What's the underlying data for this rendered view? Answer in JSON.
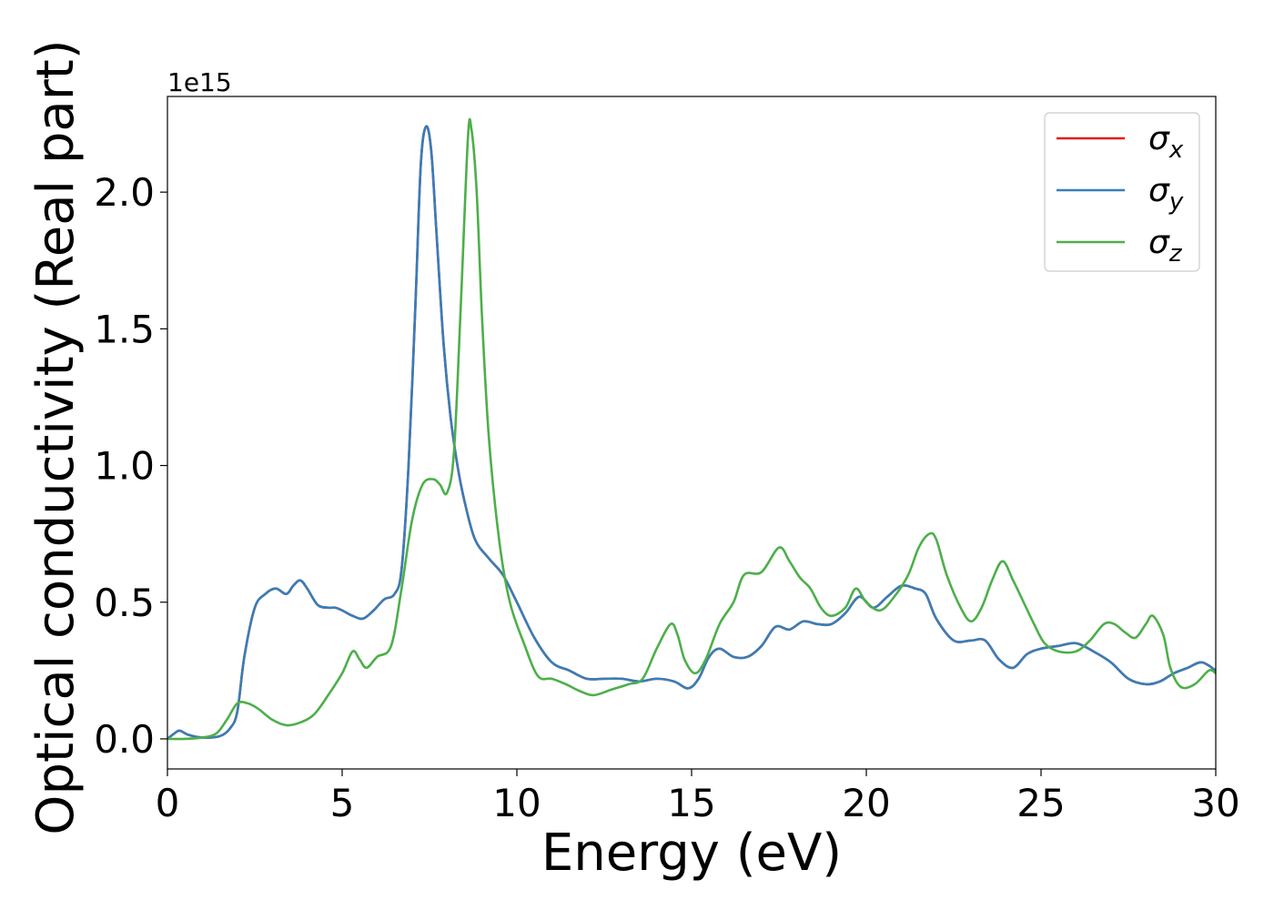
{
  "chart_data": {
    "type": "line",
    "xlabel": "Energy (eV)",
    "ylabel": "Optical conductivity (Real part)",
    "y_offset_label": "1e15",
    "xlim": [
      0,
      30
    ],
    "ylim": [
      -0.11,
      2.35
    ],
    "x_ticks": [
      0,
      5,
      10,
      15,
      20,
      25,
      30
    ],
    "y_ticks": [
      0.0,
      0.5,
      1.0,
      1.5,
      2.0
    ],
    "x_tick_labels": [
      "0",
      "5",
      "10",
      "15",
      "20",
      "25",
      "30"
    ],
    "y_tick_labels": [
      "0.0",
      "0.5",
      "1.0",
      "1.5",
      "2.0"
    ],
    "grid": false,
    "legend_position": "top-right",
    "legend": [
      {
        "symbol": "σ",
        "subscript": "x",
        "color": "#e41a1c"
      },
      {
        "symbol": "σ",
        "subscript": "y",
        "color": "#377eb8"
      },
      {
        "symbol": "σ",
        "subscript": "z",
        "color": "#4daf4a"
      }
    ],
    "series": [
      {
        "name": "σx",
        "color": "#e41a1c",
        "points": [
          [
            0,
            0.0
          ],
          [
            0.2,
            0.02
          ],
          [
            0.35,
            0.03
          ],
          [
            0.6,
            0.015
          ],
          [
            1.0,
            0.005
          ],
          [
            1.5,
            0.01
          ],
          [
            1.8,
            0.04
          ],
          [
            2.0,
            0.1
          ],
          [
            2.2,
            0.3
          ],
          [
            2.5,
            0.48
          ],
          [
            2.8,
            0.53
          ],
          [
            3.1,
            0.55
          ],
          [
            3.4,
            0.53
          ],
          [
            3.6,
            0.56
          ],
          [
            3.8,
            0.58
          ],
          [
            4.0,
            0.55
          ],
          [
            4.3,
            0.49
          ],
          [
            4.6,
            0.48
          ],
          [
            4.8,
            0.48
          ],
          [
            5.0,
            0.47
          ],
          [
            5.3,
            0.45
          ],
          [
            5.6,
            0.44
          ],
          [
            5.9,
            0.47
          ],
          [
            6.2,
            0.51
          ],
          [
            6.5,
            0.53
          ],
          [
            6.7,
            0.62
          ],
          [
            6.9,
            1.0
          ],
          [
            7.1,
            1.6
          ],
          [
            7.25,
            2.1
          ],
          [
            7.4,
            2.24
          ],
          [
            7.55,
            2.15
          ],
          [
            7.7,
            1.85
          ],
          [
            7.9,
            1.45
          ],
          [
            8.1,
            1.18
          ],
          [
            8.3,
            1.0
          ],
          [
            8.5,
            0.87
          ],
          [
            8.8,
            0.73
          ],
          [
            9.2,
            0.66
          ],
          [
            9.6,
            0.6
          ],
          [
            10.0,
            0.5
          ],
          [
            10.5,
            0.37
          ],
          [
            11.0,
            0.28
          ],
          [
            11.5,
            0.25
          ],
          [
            12.0,
            0.22
          ],
          [
            12.5,
            0.22
          ],
          [
            13.0,
            0.22
          ],
          [
            13.5,
            0.21
          ],
          [
            14.0,
            0.22
          ],
          [
            14.5,
            0.21
          ],
          [
            14.9,
            0.185
          ],
          [
            15.2,
            0.22
          ],
          [
            15.5,
            0.3
          ],
          [
            15.8,
            0.33
          ],
          [
            16.2,
            0.3
          ],
          [
            16.6,
            0.3
          ],
          [
            17.0,
            0.34
          ],
          [
            17.4,
            0.41
          ],
          [
            17.8,
            0.4
          ],
          [
            18.2,
            0.43
          ],
          [
            18.6,
            0.42
          ],
          [
            19.0,
            0.42
          ],
          [
            19.4,
            0.46
          ],
          [
            19.8,
            0.52
          ],
          [
            20.2,
            0.48
          ],
          [
            20.6,
            0.52
          ],
          [
            21.0,
            0.56
          ],
          [
            21.4,
            0.55
          ],
          [
            21.7,
            0.53
          ],
          [
            22.0,
            0.44
          ],
          [
            22.5,
            0.36
          ],
          [
            23.0,
            0.36
          ],
          [
            23.4,
            0.36
          ],
          [
            23.8,
            0.29
          ],
          [
            24.2,
            0.26
          ],
          [
            24.6,
            0.31
          ],
          [
            25.0,
            0.33
          ],
          [
            25.5,
            0.34
          ],
          [
            26.0,
            0.35
          ],
          [
            26.5,
            0.32
          ],
          [
            27.0,
            0.28
          ],
          [
            27.5,
            0.22
          ],
          [
            28.0,
            0.2
          ],
          [
            28.4,
            0.21
          ],
          [
            28.8,
            0.24
          ],
          [
            29.2,
            0.26
          ],
          [
            29.6,
            0.28
          ],
          [
            30.0,
            0.25
          ]
        ]
      },
      {
        "name": "σy",
        "color": "#377eb8",
        "points": [
          [
            0,
            0.0
          ],
          [
            0.2,
            0.02
          ],
          [
            0.35,
            0.03
          ],
          [
            0.6,
            0.015
          ],
          [
            1.0,
            0.005
          ],
          [
            1.5,
            0.01
          ],
          [
            1.8,
            0.04
          ],
          [
            2.0,
            0.1
          ],
          [
            2.2,
            0.3
          ],
          [
            2.5,
            0.48
          ],
          [
            2.8,
            0.53
          ],
          [
            3.1,
            0.55
          ],
          [
            3.4,
            0.53
          ],
          [
            3.6,
            0.56
          ],
          [
            3.8,
            0.58
          ],
          [
            4.0,
            0.55
          ],
          [
            4.3,
            0.49
          ],
          [
            4.6,
            0.48
          ],
          [
            4.8,
            0.48
          ],
          [
            5.0,
            0.47
          ],
          [
            5.3,
            0.45
          ],
          [
            5.6,
            0.44
          ],
          [
            5.9,
            0.47
          ],
          [
            6.2,
            0.51
          ],
          [
            6.5,
            0.53
          ],
          [
            6.7,
            0.62
          ],
          [
            6.9,
            1.0
          ],
          [
            7.1,
            1.6
          ],
          [
            7.25,
            2.1
          ],
          [
            7.4,
            2.24
          ],
          [
            7.55,
            2.15
          ],
          [
            7.7,
            1.85
          ],
          [
            7.9,
            1.45
          ],
          [
            8.1,
            1.18
          ],
          [
            8.3,
            1.0
          ],
          [
            8.5,
            0.87
          ],
          [
            8.8,
            0.73
          ],
          [
            9.2,
            0.66
          ],
          [
            9.6,
            0.6
          ],
          [
            10.0,
            0.5
          ],
          [
            10.5,
            0.37
          ],
          [
            11.0,
            0.28
          ],
          [
            11.5,
            0.25
          ],
          [
            12.0,
            0.22
          ],
          [
            12.5,
            0.22
          ],
          [
            13.0,
            0.22
          ],
          [
            13.5,
            0.21
          ],
          [
            14.0,
            0.22
          ],
          [
            14.5,
            0.21
          ],
          [
            14.9,
            0.185
          ],
          [
            15.2,
            0.22
          ],
          [
            15.5,
            0.3
          ],
          [
            15.8,
            0.33
          ],
          [
            16.2,
            0.3
          ],
          [
            16.6,
            0.3
          ],
          [
            17.0,
            0.34
          ],
          [
            17.4,
            0.41
          ],
          [
            17.8,
            0.4
          ],
          [
            18.2,
            0.43
          ],
          [
            18.6,
            0.42
          ],
          [
            19.0,
            0.42
          ],
          [
            19.4,
            0.46
          ],
          [
            19.8,
            0.52
          ],
          [
            20.2,
            0.48
          ],
          [
            20.6,
            0.52
          ],
          [
            21.0,
            0.56
          ],
          [
            21.4,
            0.55
          ],
          [
            21.7,
            0.53
          ],
          [
            22.0,
            0.44
          ],
          [
            22.5,
            0.36
          ],
          [
            23.0,
            0.36
          ],
          [
            23.4,
            0.36
          ],
          [
            23.8,
            0.29
          ],
          [
            24.2,
            0.26
          ],
          [
            24.6,
            0.31
          ],
          [
            25.0,
            0.33
          ],
          [
            25.5,
            0.34
          ],
          [
            26.0,
            0.35
          ],
          [
            26.5,
            0.32
          ],
          [
            27.0,
            0.28
          ],
          [
            27.5,
            0.22
          ],
          [
            28.0,
            0.2
          ],
          [
            28.4,
            0.21
          ],
          [
            28.8,
            0.24
          ],
          [
            29.2,
            0.26
          ],
          [
            29.6,
            0.28
          ],
          [
            30.0,
            0.25
          ]
        ]
      },
      {
        "name": "σz",
        "color": "#4daf4a",
        "points": [
          [
            0,
            0.0
          ],
          [
            0.5,
            0.0
          ],
          [
            1.0,
            0.005
          ],
          [
            1.4,
            0.02
          ],
          [
            1.7,
            0.07
          ],
          [
            2.0,
            0.13
          ],
          [
            2.3,
            0.13
          ],
          [
            2.6,
            0.11
          ],
          [
            3.0,
            0.07
          ],
          [
            3.4,
            0.05
          ],
          [
            3.8,
            0.06
          ],
          [
            4.2,
            0.09
          ],
          [
            4.6,
            0.16
          ],
          [
            5.0,
            0.24
          ],
          [
            5.3,
            0.32
          ],
          [
            5.5,
            0.29
          ],
          [
            5.7,
            0.26
          ],
          [
            6.0,
            0.3
          ],
          [
            6.4,
            0.34
          ],
          [
            6.7,
            0.55
          ],
          [
            7.0,
            0.8
          ],
          [
            7.3,
            0.93
          ],
          [
            7.6,
            0.95
          ],
          [
            7.8,
            0.93
          ],
          [
            8.0,
            0.9
          ],
          [
            8.2,
            1.05
          ],
          [
            8.4,
            1.6
          ],
          [
            8.6,
            2.2
          ],
          [
            8.7,
            2.23
          ],
          [
            8.85,
            2.0
          ],
          [
            9.0,
            1.55
          ],
          [
            9.2,
            1.1
          ],
          [
            9.5,
            0.72
          ],
          [
            9.8,
            0.5
          ],
          [
            10.2,
            0.35
          ],
          [
            10.6,
            0.23
          ],
          [
            11.0,
            0.22
          ],
          [
            11.4,
            0.2
          ],
          [
            11.8,
            0.175
          ],
          [
            12.2,
            0.16
          ],
          [
            12.7,
            0.18
          ],
          [
            13.2,
            0.2
          ],
          [
            13.6,
            0.22
          ],
          [
            14.0,
            0.33
          ],
          [
            14.4,
            0.42
          ],
          [
            14.6,
            0.38
          ],
          [
            14.8,
            0.29
          ],
          [
            15.1,
            0.24
          ],
          [
            15.4,
            0.29
          ],
          [
            15.8,
            0.42
          ],
          [
            16.2,
            0.5
          ],
          [
            16.5,
            0.6
          ],
          [
            17.0,
            0.61
          ],
          [
            17.5,
            0.7
          ],
          [
            17.8,
            0.65
          ],
          [
            18.1,
            0.59
          ],
          [
            18.4,
            0.55
          ],
          [
            18.7,
            0.48
          ],
          [
            19.0,
            0.45
          ],
          [
            19.4,
            0.48
          ],
          [
            19.7,
            0.55
          ],
          [
            20.0,
            0.5
          ],
          [
            20.4,
            0.47
          ],
          [
            20.8,
            0.52
          ],
          [
            21.2,
            0.6
          ],
          [
            21.5,
            0.7
          ],
          [
            21.8,
            0.75
          ],
          [
            22.0,
            0.73
          ],
          [
            22.3,
            0.6
          ],
          [
            22.7,
            0.48
          ],
          [
            23.0,
            0.43
          ],
          [
            23.3,
            0.48
          ],
          [
            23.6,
            0.58
          ],
          [
            23.9,
            0.65
          ],
          [
            24.2,
            0.58
          ],
          [
            24.5,
            0.5
          ],
          [
            24.8,
            0.42
          ],
          [
            25.1,
            0.35
          ],
          [
            25.5,
            0.32
          ],
          [
            26.0,
            0.32
          ],
          [
            26.4,
            0.36
          ],
          [
            26.8,
            0.42
          ],
          [
            27.1,
            0.42
          ],
          [
            27.4,
            0.39
          ],
          [
            27.7,
            0.37
          ],
          [
            28.0,
            0.42
          ],
          [
            28.2,
            0.45
          ],
          [
            28.5,
            0.38
          ],
          [
            28.7,
            0.26
          ],
          [
            29.0,
            0.19
          ],
          [
            29.4,
            0.2
          ],
          [
            29.8,
            0.25
          ],
          [
            30.0,
            0.24
          ]
        ]
      }
    ]
  }
}
